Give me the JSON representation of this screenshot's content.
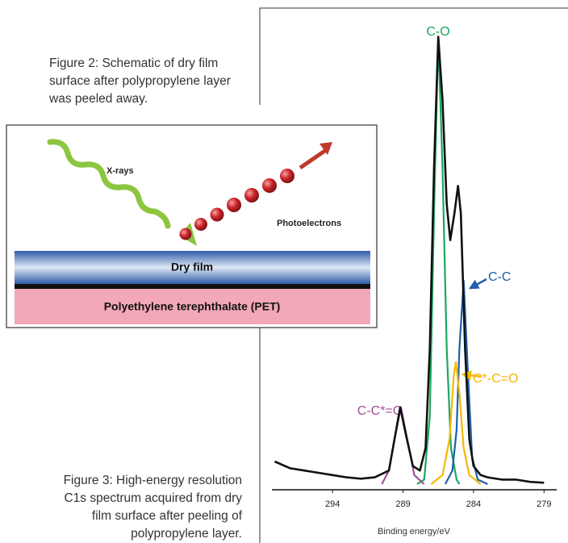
{
  "figure2": {
    "caption": "Figure 2: Schematic of dry film surface after polypropylene layer was peeled away.",
    "xrays_label": "X-rays",
    "photoelectrons_label": "Photoelectrons",
    "layer_top": "Dry film",
    "layer_bottom": "Polyethylene terephthalate (PET)"
  },
  "figure3": {
    "caption": "Figure 3: High-energy resolution C1s spectrum acquired from dry film surface after peeling of polypropylene layer."
  },
  "chart_data": {
    "type": "line",
    "x_label": "Binding energy/eV",
    "xlim": [
      298.3,
      278.1
    ],
    "xticks": [
      294,
      289,
      284,
      279
    ],
    "ylim": [
      0,
      100
    ],
    "series": [
      {
        "color": "#111111",
        "x": [
          298.1,
          297,
          296,
          295,
          294,
          293,
          292,
          291,
          290,
          289.6,
          289.2,
          288.8,
          288.3,
          287.8,
          287.4,
          287.1,
          286.8,
          286.5,
          286.2,
          285.9,
          285.65,
          285.35,
          285.1,
          284.9,
          284.6,
          284.3,
          284,
          283.5,
          283,
          282,
          281,
          280,
          279
        ],
        "values": [
          5,
          3.5,
          3,
          2.5,
          2,
          1.5,
          1.2,
          1.5,
          3,
          10,
          17,
          11,
          4,
          3,
          8,
          30,
          70,
          99,
          85,
          62,
          54,
          60,
          66,
          60,
          30,
          10,
          4,
          2,
          1.5,
          1,
          1,
          0.5,
          0.3
        ]
      },
      {
        "name": "C-O",
        "color": "#1aa860",
        "x": [
          288,
          287.5,
          287.1,
          286.8,
          286.5,
          286.2,
          285.9,
          285.6,
          285.2,
          285
        ],
        "values": [
          0,
          1,
          15,
          60,
          99,
          70,
          30,
          8,
          1,
          0
        ]
      },
      {
        "name": "C-C",
        "color": "#1f5fa8",
        "x": [
          286,
          285.5,
          285.2,
          285,
          284.7,
          284.4,
          284.1,
          283.7,
          283
        ],
        "values": [
          0,
          3,
          12,
          30,
          45,
          25,
          6,
          1,
          0
        ]
      },
      {
        "name": "C*-C=O",
        "color": "#f5b800",
        "x": [
          287,
          286.2,
          285.7,
          285.4,
          285.25,
          285,
          284.7,
          284.3,
          283.5
        ],
        "values": [
          0,
          2,
          10,
          24,
          27,
          20,
          8,
          2,
          0
        ]
      },
      {
        "name": "C-C*=O",
        "color": "#a0509a",
        "x": [
          290.5,
          290,
          289.6,
          289.15,
          288.7,
          288.2,
          287.5
        ],
        "values": [
          0,
          3,
          10,
          17,
          10,
          2,
          0
        ]
      }
    ]
  }
}
